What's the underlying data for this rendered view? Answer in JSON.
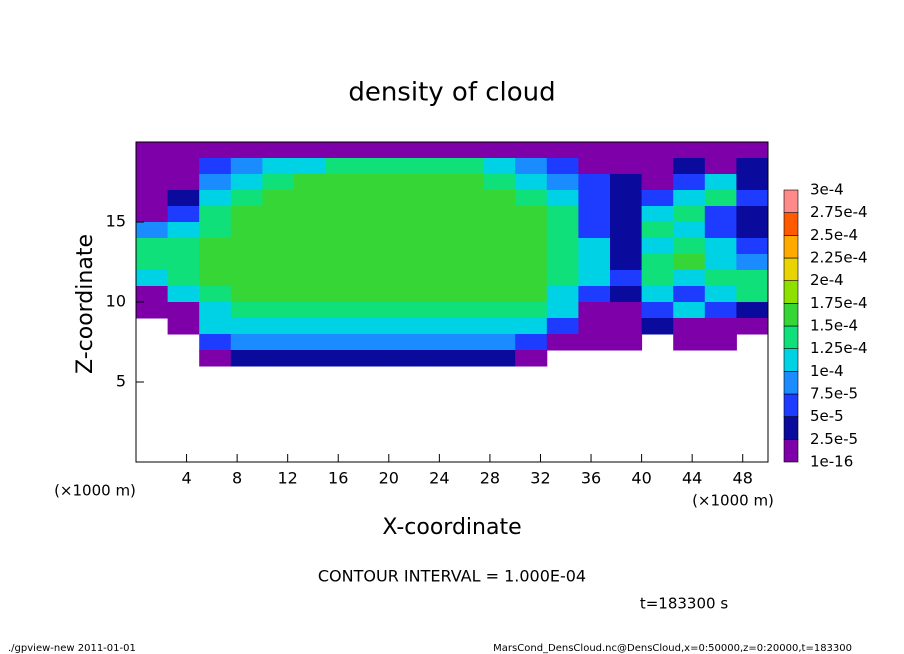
{
  "chart_data": {
    "type": "heatmap",
    "title": "density of cloud",
    "xlabel": "X-coordinate",
    "ylabel": "Z-coordinate",
    "xunit": "(×1000 m)",
    "xunit2": "(×1000 m)",
    "contour_interval": "CONTOUR INTERVAL = 1.000E-04",
    "time_label": "t=183300 s",
    "footer_left": "./gpview-new  2011-01-01",
    "footer_right": "MarsCond_DensCloud.nc@DensCloud,x=0:50000,z=0:20000,t=183300",
    "xlim": [
      0,
      50
    ],
    "ylim": [
      0,
      20
    ],
    "xticks": [
      4,
      8,
      12,
      16,
      20,
      24,
      28,
      32,
      36,
      40,
      44,
      48
    ],
    "yticks": [
      5,
      10,
      15
    ],
    "x": [
      0,
      2.5,
      5,
      7.5,
      10,
      12.5,
      15,
      17.5,
      20,
      22.5,
      25,
      27.5,
      30,
      32.5,
      35,
      37.5,
      40,
      42.5,
      45,
      47.5,
      50
    ],
    "y": [
      20,
      19,
      18,
      17,
      16,
      15,
      14,
      13,
      12,
      11,
      10,
      9,
      8,
      7,
      6
    ],
    "values": [
      [
        1e-05,
        1e-05,
        1e-05,
        1e-05,
        1e-05,
        1e-05,
        1e-05,
        1e-05,
        1e-05,
        1e-05,
        1e-05,
        1e-05,
        1e-05,
        1e-05,
        1e-05,
        1e-05,
        1e-05,
        1e-05,
        1e-05,
        1e-05
      ],
      [
        1e-05,
        1e-05,
        6e-05,
        8.5e-05,
        0.00011,
        0.00011,
        0.000135,
        0.000135,
        0.000135,
        0.000135,
        0.000135,
        0.00011,
        8.5e-05,
        6e-05,
        1e-05,
        1e-05,
        1e-05,
        3.5e-05,
        1e-05,
        3.5e-05
      ],
      [
        1e-05,
        1e-05,
        8.5e-05,
        0.00011,
        0.000135,
        0.00016,
        0.00016,
        0.00016,
        0.00016,
        0.00016,
        0.00016,
        0.000135,
        0.00011,
        8.5e-05,
        6e-05,
        3.5e-05,
        1e-05,
        6e-05,
        0.00011,
        3.5e-05
      ],
      [
        1e-05,
        3.5e-05,
        0.00011,
        0.000135,
        0.00016,
        0.00016,
        0.00016,
        0.00016,
        0.00016,
        0.00016,
        0.00016,
        0.00016,
        0.000135,
        0.00011,
        6e-05,
        3.5e-05,
        6e-05,
        0.00011,
        0.000135,
        6e-05
      ],
      [
        1e-05,
        6e-05,
        0.000135,
        0.00016,
        0.00016,
        0.00016,
        0.00016,
        0.00016,
        0.00016,
        0.00016,
        0.00016,
        0.00016,
        0.00016,
        0.000135,
        6e-05,
        3.5e-05,
        0.00011,
        0.000135,
        6e-05,
        3.5e-05
      ],
      [
        8.5e-05,
        0.00011,
        0.000135,
        0.00016,
        0.00016,
        0.00016,
        0.00016,
        0.00016,
        0.00016,
        0.00016,
        0.00016,
        0.00016,
        0.00016,
        0.000135,
        6e-05,
        3.5e-05,
        0.000135,
        0.00011,
        6e-05,
        3.5e-05
      ],
      [
        0.000135,
        0.000135,
        0.00016,
        0.00016,
        0.00016,
        0.00016,
        0.00016,
        0.00016,
        0.00016,
        0.00016,
        0.00016,
        0.00016,
        0.00016,
        0.000135,
        0.00011,
        3.5e-05,
        0.00011,
        0.000135,
        0.00011,
        6e-05
      ],
      [
        0.000135,
        0.000135,
        0.00016,
        0.00016,
        0.00016,
        0.00016,
        0.00016,
        0.00016,
        0.00016,
        0.00016,
        0.00016,
        0.00016,
        0.00016,
        0.000135,
        0.00011,
        3.5e-05,
        0.000135,
        0.00016,
        0.00011,
        8.5e-05
      ],
      [
        0.00011,
        0.000135,
        0.00016,
        0.00016,
        0.00016,
        0.00016,
        0.00016,
        0.00016,
        0.00016,
        0.00016,
        0.00016,
        0.00016,
        0.00016,
        0.000135,
        0.00011,
        6e-05,
        0.000135,
        0.00011,
        0.000135,
        0.000135
      ],
      [
        1e-05,
        0.00011,
        0.000135,
        0.00016,
        0.00016,
        0.00016,
        0.00016,
        0.00016,
        0.00016,
        0.00016,
        0.00016,
        0.00016,
        0.00016,
        0.00011,
        6e-05,
        3.5e-05,
        0.00011,
        6e-05,
        0.00011,
        0.000135
      ],
      [
        1e-05,
        1e-05,
        0.00011,
        0.000135,
        0.000135,
        0.000135,
        0.000135,
        0.000135,
        0.000135,
        0.000135,
        0.000135,
        0.000135,
        0.000135,
        0.00011,
        1e-05,
        1e-05,
        6e-05,
        0.00011,
        6e-05,
        3.5e-05
      ],
      [
        null,
        1e-05,
        0.00011,
        0.00011,
        0.00011,
        0.00011,
        0.00011,
        0.00011,
        0.00011,
        0.00011,
        0.00011,
        0.00011,
        0.00011,
        6e-05,
        1e-05,
        1e-05,
        3.5e-05,
        1e-05,
        1e-05,
        1e-05
      ],
      [
        null,
        null,
        6e-05,
        8.5e-05,
        8.5e-05,
        8.5e-05,
        8.5e-05,
        8.5e-05,
        8.5e-05,
        8.5e-05,
        8.5e-05,
        8.5e-05,
        6e-05,
        1e-05,
        1e-05,
        1e-05,
        null,
        1e-05,
        1e-05,
        null
      ],
      [
        null,
        null,
        1e-05,
        3.5e-05,
        3.5e-05,
        3.5e-05,
        3.5e-05,
        3.5e-05,
        3.5e-05,
        3.5e-05,
        3.5e-05,
        3.5e-05,
        1e-05,
        null,
        null,
        null,
        null,
        null,
        null,
        null
      ]
    ],
    "levels": [
      {
        "value": 1e-16,
        "label": "1e-16"
      },
      {
        "value": 2.5e-05,
        "label": "2.5e-5"
      },
      {
        "value": 5e-05,
        "label": "5e-5"
      },
      {
        "value": 7.5e-05,
        "label": "7.5e-5"
      },
      {
        "value": 0.0001,
        "label": "1e-4"
      },
      {
        "value": 0.000125,
        "label": "1.25e-4"
      },
      {
        "value": 0.00015,
        "label": "1.5e-4"
      },
      {
        "value": 0.000175,
        "label": "1.75e-4"
      },
      {
        "value": 0.0002,
        "label": "2e-4"
      },
      {
        "value": 0.000225,
        "label": "2.25e-4"
      },
      {
        "value": 0.00025,
        "label": "2.5e-4"
      },
      {
        "value": 0.000275,
        "label": "2.75e-4"
      },
      {
        "value": 0.0003,
        "label": "3e-4"
      }
    ],
    "colors": [
      "#7d00a8",
      "#0a0a9c",
      "#1e3cff",
      "#1a8cff",
      "#00d2e6",
      "#10e07a",
      "#36d636",
      "#8ee000",
      "#e8d400",
      "#ffaa00",
      "#ff5a00",
      "#ff8a8a"
    ]
  }
}
